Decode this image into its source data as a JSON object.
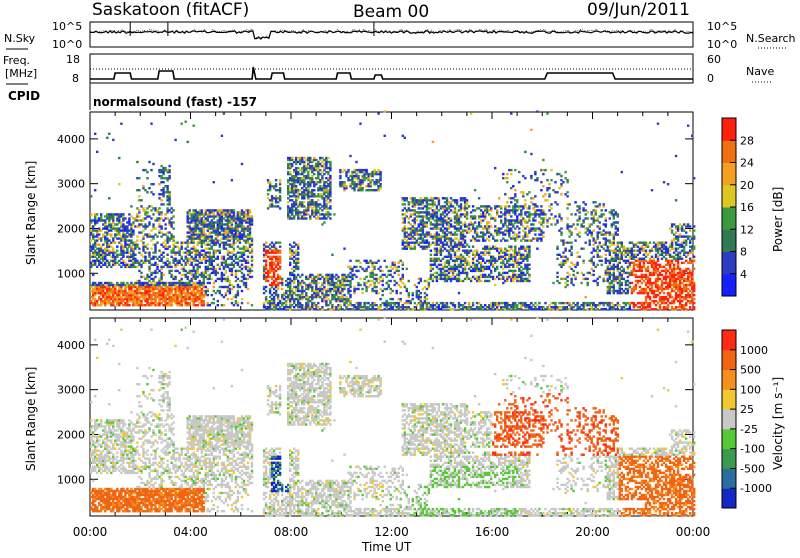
{
  "header": {
    "station": "Saskatoon (fitACF)",
    "beam": "Beam 00",
    "date": "09/Jun/2011"
  },
  "noise_panel": {
    "left_label": "N.Sky",
    "left_ticks": [
      "10^5",
      "10^0"
    ],
    "right_label": "N.Search",
    "right_ticks": [
      "10^5",
      "10^0"
    ]
  },
  "freq_panel": {
    "left_label_1": "Freq.",
    "left_label_2": "[MHz]",
    "left_ticks": [
      "18",
      "8"
    ],
    "right_label": "Nave",
    "right_ticks": [
      "60",
      "0"
    ],
    "freq_steps": [
      [
        0,
        10
      ],
      [
        0.95,
        10
      ],
      [
        1.0,
        13
      ],
      [
        1.6,
        13
      ],
      [
        1.65,
        10
      ],
      [
        2.7,
        10
      ],
      [
        2.75,
        14
      ],
      [
        3.3,
        14
      ],
      [
        3.35,
        10
      ],
      [
        6.45,
        10
      ],
      [
        6.5,
        16
      ],
      [
        6.6,
        10
      ],
      [
        7.2,
        10
      ],
      [
        7.25,
        13
      ],
      [
        7.7,
        13
      ],
      [
        7.75,
        10
      ],
      [
        9.8,
        10
      ],
      [
        9.85,
        13
      ],
      [
        10.35,
        13
      ],
      [
        10.4,
        10
      ],
      [
        11.3,
        10
      ],
      [
        11.35,
        12
      ],
      [
        11.6,
        12
      ],
      [
        11.65,
        10
      ],
      [
        18.1,
        10
      ],
      [
        18.2,
        13
      ],
      [
        20.8,
        13
      ],
      [
        20.9,
        10
      ],
      [
        24,
        10
      ]
    ]
  },
  "cpid": {
    "label": "CPID",
    "value": "normalsound (fast) -157"
  },
  "chart_data": [
    {
      "type": "heatmap",
      "panel": "power",
      "ylabel": "Slant Range [km]",
      "yticks": [
        1000,
        2000,
        3000,
        4000
      ],
      "ylim": [
        180,
        4600
      ],
      "xlim": [
        0,
        24
      ],
      "colorbar_label": "Power [dB]",
      "colorbar_ticks": [
        "28",
        "24",
        "20",
        "16",
        "12",
        "8",
        "4"
      ],
      "colorscale": [
        "#1420ff",
        "#2e3cc4",
        "#2f7a52",
        "#3b9a3e",
        "#dcc820",
        "#f5a020",
        "#f07010",
        "#ff2010"
      ]
    },
    {
      "type": "heatmap",
      "panel": "velocity",
      "ylabel": "Slant Range [km]",
      "yticks": [
        1000,
        2000,
        3000,
        4000
      ],
      "ylim": [
        180,
        4600
      ],
      "xlim": [
        0,
        24
      ],
      "colorbar_label": "Velocity [m s⁻¹]",
      "colorbar_ticks": [
        "1000",
        "500",
        "100",
        "25",
        "-25",
        "-100",
        "-500",
        "-1000"
      ],
      "colorscale": [
        "#1428c8",
        "#2a6ea0",
        "#3c9a50",
        "#58c838",
        "#c8c8c8",
        "#f0c832",
        "#f5901e",
        "#f06414",
        "#ff2a14"
      ]
    }
  ],
  "xaxis": {
    "label": "Time UT",
    "ticks": [
      "00:00",
      "04:00",
      "08:00",
      "12:00",
      "16:00",
      "20:00",
      "00:00"
    ]
  }
}
